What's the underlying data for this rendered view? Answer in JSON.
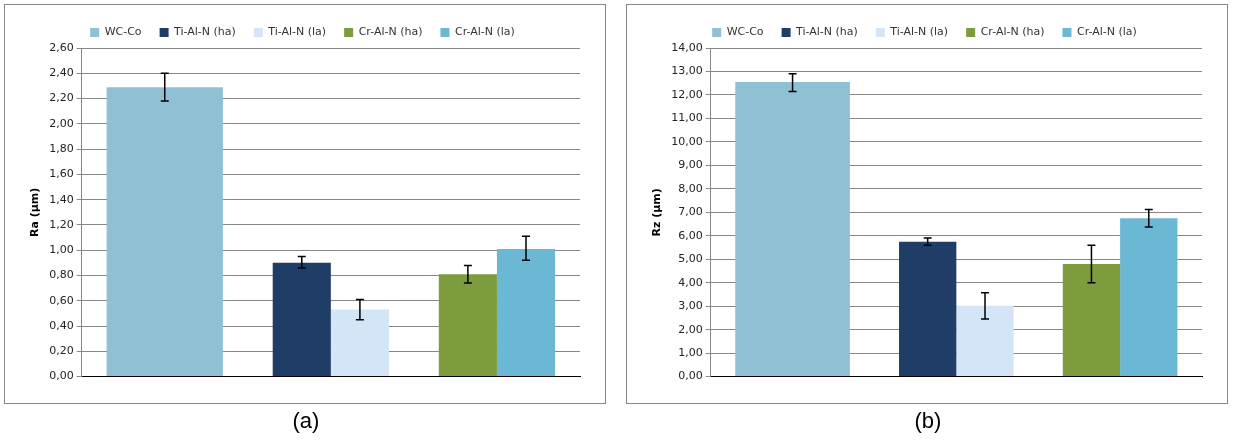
{
  "chart_data": [
    {
      "type": "bar",
      "title": "(a)",
      "ylabel": "Ra (µm)",
      "categories": [
        null,
        null,
        null
      ],
      "series": [
        {
          "name": "WC-Co",
          "color": "#8fc0d4",
          "values": [
            2.29,
            null,
            null
          ],
          "errors": [
            [
              2.18,
              2.4
            ],
            null,
            null
          ]
        },
        {
          "name": "Ti-Al-N (ha)",
          "color": "#1f3d66",
          "values": [
            null,
            0.9,
            null
          ],
          "errors": [
            null,
            [
              0.86,
              0.95
            ],
            null
          ]
        },
        {
          "name": "Ti-Al-N (la)",
          "color": "#d4e5f8",
          "values": [
            null,
            0.53,
            null
          ],
          "errors": [
            null,
            [
              0.45,
              0.61
            ],
            null
          ]
        },
        {
          "name": "Cr-Al-N (ha)",
          "color": "#7d9c3e",
          "values": [
            null,
            null,
            0.81
          ],
          "errors": [
            null,
            null,
            [
              0.74,
              0.88
            ]
          ]
        },
        {
          "name": "Cr-Al-N (la)",
          "color": "#6bb8d4",
          "values": [
            null,
            null,
            1.01
          ],
          "errors": [
            null,
            null,
            [
              0.92,
              1.11
            ]
          ]
        }
      ],
      "ylim": [
        0,
        2.6
      ],
      "yticks": [
        {
          "value": 0,
          "label": "0,00"
        },
        {
          "value": 0.2,
          "label": "0,20"
        },
        {
          "value": 0.4,
          "label": "0,40"
        },
        {
          "value": 0.6,
          "label": "0,60"
        },
        {
          "value": 0.8,
          "label": "0,80"
        },
        {
          "value": 1.0,
          "label": "1,00"
        },
        {
          "value": 1.2,
          "label": "1,20"
        },
        {
          "value": 1.4,
          "label": "1,40"
        },
        {
          "value": 1.6,
          "label": "1,60"
        },
        {
          "value": 1.8,
          "label": "1,80"
        },
        {
          "value": 2.0,
          "label": "2,00"
        },
        {
          "value": 2.2,
          "label": "2,20"
        },
        {
          "value": 2.4,
          "label": "2,40"
        },
        {
          "value": 2.6,
          "label": "2,60"
        }
      ],
      "grid": "y",
      "legend": "top"
    },
    {
      "type": "bar",
      "title": "(b)",
      "ylabel": "Rz (µm)",
      "categories": [
        null,
        null,
        null
      ],
      "series": [
        {
          "name": "WC-Co",
          "color": "#8fc0d4",
          "values": [
            12.55,
            null,
            null
          ],
          "errors": [
            [
              12.15,
              12.9
            ],
            null,
            null
          ]
        },
        {
          "name": "Ti-Al-N (ha)",
          "color": "#1f3d66",
          "values": [
            null,
            5.75,
            null
          ],
          "errors": [
            null,
            [
              5.6,
              5.9
            ],
            null
          ]
        },
        {
          "name": "Ti-Al-N (la)",
          "color": "#d4e5f8",
          "values": [
            null,
            3.02,
            null
          ],
          "errors": [
            null,
            [
              2.45,
              3.57
            ],
            null
          ]
        },
        {
          "name": "Cr-Al-N (ha)",
          "color": "#7d9c3e",
          "values": [
            null,
            null,
            4.8
          ],
          "errors": [
            null,
            null,
            [
              4.0,
              5.6
            ]
          ]
        },
        {
          "name": "Cr-Al-N (la)",
          "color": "#6bb8d4",
          "values": [
            null,
            null,
            6.75
          ],
          "errors": [
            null,
            null,
            [
              6.37,
              7.12
            ]
          ]
        }
      ],
      "ylim": [
        0,
        14
      ],
      "yticks": [
        {
          "value": 0,
          "label": "0,00"
        },
        {
          "value": 1,
          "label": "1,00"
        },
        {
          "value": 2,
          "label": "2,00"
        },
        {
          "value": 3,
          "label": "3,00"
        },
        {
          "value": 4,
          "label": "4,00"
        },
        {
          "value": 5,
          "label": "5,00"
        },
        {
          "value": 6,
          "label": "6,00"
        },
        {
          "value": 7,
          "label": "7,00"
        },
        {
          "value": 8,
          "label": "8,00"
        },
        {
          "value": 9,
          "label": "9,00"
        },
        {
          "value": 10,
          "label": "10,00"
        },
        {
          "value": 11,
          "label": "11,00"
        },
        {
          "value": 12,
          "label": "12,00"
        },
        {
          "value": 13,
          "label": "13,00"
        },
        {
          "value": 14,
          "label": "14,00"
        }
      ],
      "grid": "y",
      "legend": "top"
    }
  ]
}
